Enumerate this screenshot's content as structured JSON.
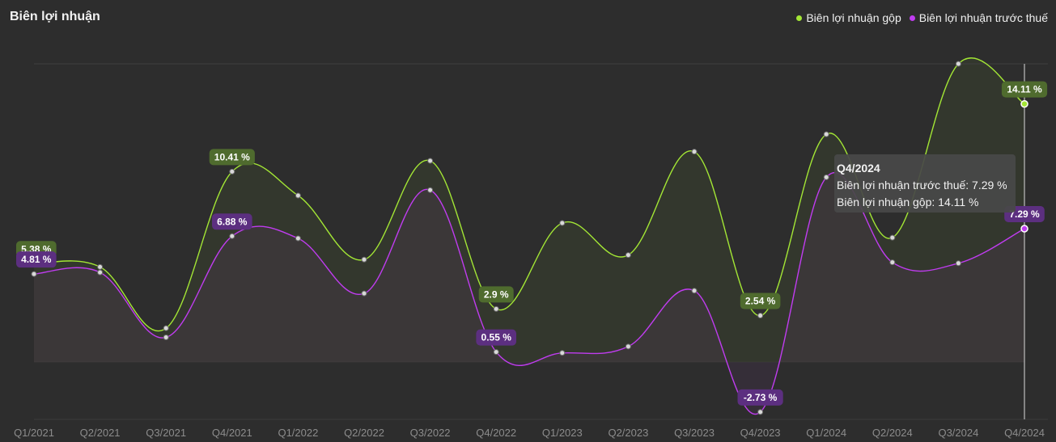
{
  "chart_data": {
    "type": "line",
    "title": "Biên lợi nhuận",
    "categories": [
      "Q1/2021",
      "Q2/2021",
      "Q3/2021",
      "Q4/2021",
      "Q1/2022",
      "Q2/2022",
      "Q3/2022",
      "Q4/2022",
      "Q1/2023",
      "Q2/2023",
      "Q3/2023",
      "Q4/2023",
      "Q1/2024",
      "Q2/2024",
      "Q3/2024",
      "Q4/2024"
    ],
    "series": [
      {
        "name": "Biên lợi nhuận gộp",
        "color": "#a3e635",
        "values": [
          5.38,
          5.2,
          1.85,
          10.41,
          9.1,
          5.6,
          11.0,
          2.9,
          7.6,
          5.85,
          11.5,
          2.54,
          12.45,
          6.8,
          16.3,
          14.11
        ]
      },
      {
        "name": "Biên lợi nhuận trước thuế",
        "color": "#c03cf0",
        "values": [
          4.81,
          4.9,
          1.35,
          6.88,
          6.76,
          3.75,
          9.4,
          0.55,
          0.5,
          0.85,
          3.9,
          -2.73,
          10.1,
          5.45,
          5.4,
          7.29
        ]
      }
    ],
    "data_labels": [
      {
        "series": 0,
        "index": 0,
        "text": "5.38 %"
      },
      {
        "series": 0,
        "index": 3,
        "text": "10.41 %"
      },
      {
        "series": 0,
        "index": 7,
        "text": "2.9 %"
      },
      {
        "series": 0,
        "index": 11,
        "text": "2.54 %"
      },
      {
        "series": 0,
        "index": 15,
        "text": "14.11 %"
      },
      {
        "series": 1,
        "index": 0,
        "text": "4.81 %"
      },
      {
        "series": 1,
        "index": 3,
        "text": "6.88 %"
      },
      {
        "series": 1,
        "index": 7,
        "text": "0.55 %"
      },
      {
        "series": 1,
        "index": 11,
        "text": "-2.73 %"
      },
      {
        "series": 1,
        "index": 15,
        "text": "7.29 %"
      }
    ],
    "ylim": [
      -3.0,
      16.3
    ],
    "grid": "horizontal",
    "legend_position": "top-right"
  },
  "legend": [
    {
      "label": "Biên lợi nhuận gộp",
      "color": "#a3e635"
    },
    {
      "label": "Biên lợi nhuận trước thuế",
      "color": "#c03cf0"
    }
  ],
  "tooltip": {
    "title": "Q4/2024",
    "line1": "Biên lợi nhuận trước thuế: 7.29 %",
    "line2": "Biên lợi nhuận gộp: 14.11 %"
  }
}
